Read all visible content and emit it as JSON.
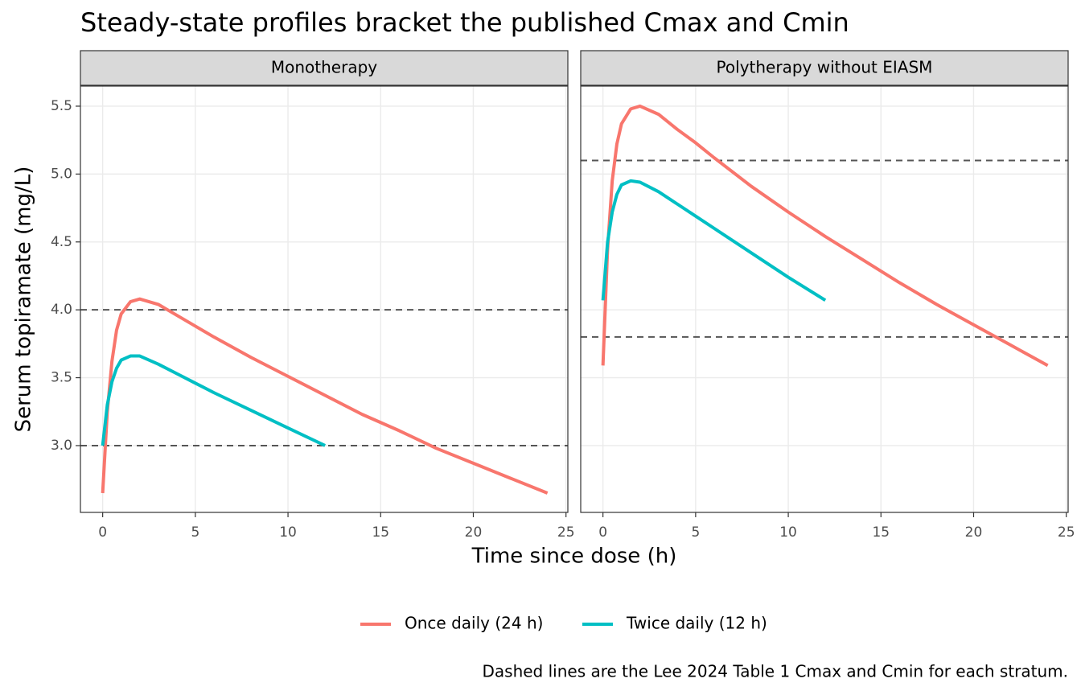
{
  "chart_data": {
    "type": "line",
    "title": "Steady-state profiles bracket the published Cmax and Cmin",
    "x_label": "Time since dose (h)",
    "y_label": "Serum topiramate (mg/L)",
    "caption": "Dashed lines are the Lee 2024 Table 1 Cmax and Cmin for each stratum.",
    "xlim": [
      -1.2,
      25.1
    ],
    "ylim": [
      2.508,
      5.648
    ],
    "xticks": [
      0,
      5,
      10,
      15,
      20,
      25
    ],
    "yticks": [
      {
        "value": 3,
        "label": "3.0"
      },
      {
        "value": 3.5,
        "label": "3.5"
      },
      {
        "value": 4,
        "label": "4.0"
      },
      {
        "value": 4.5,
        "label": "4.5"
      },
      {
        "value": 5,
        "label": "5.0"
      },
      {
        "value": 5.5,
        "label": "5.5"
      }
    ],
    "grid": true,
    "legend": "bottom",
    "facets": [
      {
        "name": "Monotherapy",
        "reference_lines": [
          4.0,
          3.0
        ],
        "series": [
          {
            "name": "Once daily (24 h)",
            "color": "#F8766D",
            "x": [
              0,
              0.25,
              0.5,
              0.75,
              1,
              1.5,
              2,
              3,
              4,
              5,
              6,
              8,
              10,
              12,
              14,
              16,
              18,
              20,
              22,
              24
            ],
            "values": [
              2.65,
              3.25,
              3.62,
              3.85,
              3.97,
              4.06,
              4.08,
              4.04,
              3.96,
              3.88,
              3.8,
              3.65,
              3.51,
              3.37,
              3.23,
              3.11,
              2.98,
              2.87,
              2.76,
              2.65
            ]
          },
          {
            "name": "Twice daily (12 h)",
            "color": "#00BFC4",
            "x": [
              0,
              0.25,
              0.5,
              0.75,
              1,
              1.5,
              2,
              3,
              4,
              5,
              6,
              8,
              10,
              12
            ],
            "values": [
              3.0,
              3.3,
              3.47,
              3.57,
              3.63,
              3.66,
              3.66,
              3.6,
              3.53,
              3.46,
              3.39,
              3.26,
              3.13,
              3.0
            ]
          }
        ]
      },
      {
        "name": "Polytherapy without EIASM",
        "reference_lines": [
          5.1,
          3.8
        ],
        "series": [
          {
            "name": "Once daily (24 h)",
            "color": "#F8766D",
            "x": [
              0,
              0.25,
              0.5,
              0.75,
              1,
              1.5,
              2,
              3,
              4,
              5,
              6,
              8,
              10,
              12,
              14,
              16,
              18,
              20,
              22,
              24
            ],
            "values": [
              3.59,
              4.45,
              4.95,
              5.22,
              5.37,
              5.48,
              5.5,
              5.44,
              5.33,
              5.23,
              5.12,
              4.91,
              4.72,
              4.54,
              4.37,
              4.2,
              4.04,
              3.89,
              3.74,
              3.59
            ]
          },
          {
            "name": "Twice daily (12 h)",
            "color": "#00BFC4",
            "x": [
              0,
              0.25,
              0.5,
              0.75,
              1,
              1.5,
              2,
              3,
              4,
              5,
              6,
              8,
              10,
              12
            ],
            "values": [
              4.07,
              4.5,
              4.72,
              4.85,
              4.92,
              4.95,
              4.94,
              4.87,
              4.78,
              4.69,
              4.6,
              4.42,
              4.24,
              4.07
            ]
          }
        ]
      }
    ]
  }
}
